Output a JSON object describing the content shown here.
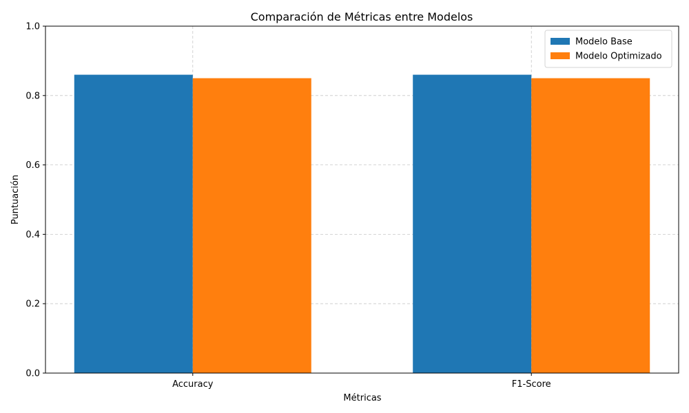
{
  "chart_data": {
    "type": "bar",
    "title": "Comparación de Métricas entre Modelos",
    "xlabel": "Métricas",
    "ylabel": "Puntuación",
    "categories": [
      "Accuracy",
      "F1-Score"
    ],
    "series": [
      {
        "name": "Modelo Base",
        "values": [
          0.86,
          0.86
        ],
        "color": "#1f77b4"
      },
      {
        "name": "Modelo Optimizado",
        "values": [
          0.85,
          0.85
        ],
        "color": "#ff7f0e"
      }
    ],
    "ylim": [
      0,
      1.0
    ],
    "yticks": [
      "0.0",
      "0.2",
      "0.4",
      "0.6",
      "0.8",
      "1.0"
    ],
    "grid": true,
    "legend_position": "top-right"
  }
}
